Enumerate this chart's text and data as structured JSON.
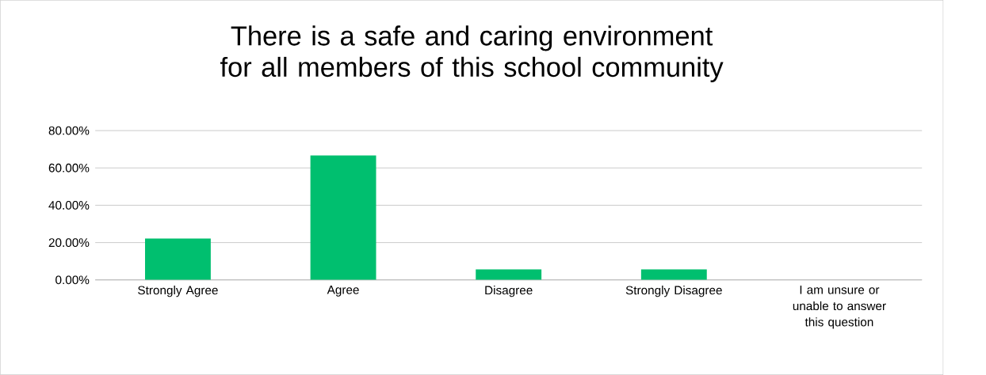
{
  "chart_data": {
    "type": "bar",
    "title": "There is a safe and caring environment for all members of this school community",
    "categories": [
      "Strongly Agree",
      "Agree",
      "Disagree",
      "Strongly Disagree",
      "I am unsure or unable to answer this question"
    ],
    "values": [
      22.2,
      66.7,
      5.6,
      5.6,
      0
    ],
    "color": "#00bf6f",
    "ylim": [
      0,
      80
    ],
    "yticks": [
      {
        "value": 0,
        "label": "0.00%"
      },
      {
        "value": 20,
        "label": "20.00%"
      },
      {
        "value": 40,
        "label": "40.00%"
      },
      {
        "value": 60,
        "label": "60.00%"
      },
      {
        "value": 80,
        "label": "80.00%"
      }
    ],
    "grid": "y"
  }
}
